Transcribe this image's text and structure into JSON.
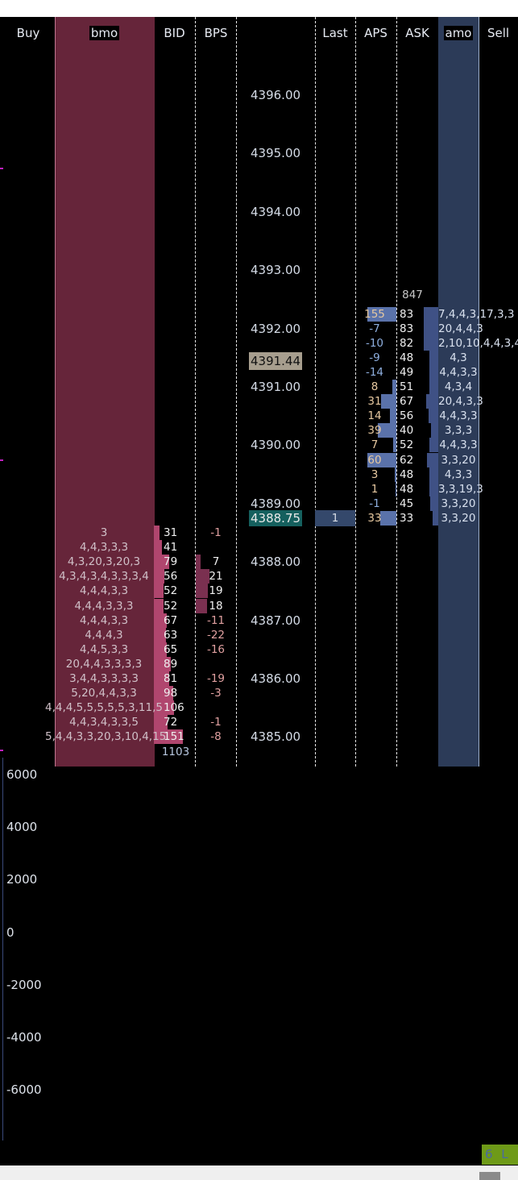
{
  "headers": {
    "buy": "Buy",
    "bmo": "bmo",
    "bid": "BID",
    "bps": "BPS",
    "last": "Last",
    "aps": "APS",
    "ask": "ASK",
    "amo": "amo",
    "sell": "Sell"
  },
  "colors": {
    "bmo_bg": "#66253a",
    "amo_bg": "#2c3b58",
    "bid_bar": "#b0466e",
    "bps_bar": "#7a3050",
    "ask_bar": "#3f5185",
    "aps_bar": "#5a72aa",
    "current_price_bg": "#15605e",
    "last_trade_bg": "#a79e8e",
    "last_qty_bg": "#34486b"
  },
  "price_labels": [
    "4396.00",
    "4395.00",
    "4394.00",
    "4393.00",
    "4392.00",
    "4391.00",
    "4390.00",
    "4389.00",
    "4388.00",
    "4387.00",
    "4386.00",
    "4385.00"
  ],
  "last_trade_price": "4391.44",
  "current_price": {
    "price": "4388.75",
    "last_qty": "1"
  },
  "ask_total": "847",
  "ask_rows": [
    {
      "price": "4392.25",
      "aps": "155",
      "ask": "83",
      "amo": "7,4,4,3,17,3,3"
    },
    {
      "price": "4392.00",
      "aps": "-7",
      "ask": "83",
      "amo": "20,4,4,3"
    },
    {
      "price": "4391.75",
      "aps": "-10",
      "ask": "82",
      "amo": "2,10,10,4,4,3,4"
    },
    {
      "price": "4391.50",
      "aps": "-9",
      "ask": "48",
      "amo": "4,3"
    },
    {
      "price": "4391.25",
      "aps": "-14",
      "ask": "49",
      "amo": "4,4,3,3"
    },
    {
      "price": "4391.00",
      "aps": "8",
      "ask": "51",
      "amo": "4,3,4"
    },
    {
      "price": "4390.75",
      "aps": "31",
      "ask": "67",
      "amo": "20,4,3,3"
    },
    {
      "price": "4390.50",
      "aps": "14",
      "ask": "56",
      "amo": "4,4,3,3"
    },
    {
      "price": "4390.25",
      "aps": "39",
      "ask": "40",
      "amo": "3,3,3"
    },
    {
      "price": "4390.00",
      "aps": "7",
      "ask": "52",
      "amo": "4,4,3,3"
    },
    {
      "price": "4389.75",
      "aps": "60",
      "ask": "62",
      "amo": "3,3,20"
    },
    {
      "price": "4389.50",
      "aps": "3",
      "ask": "48",
      "amo": "4,3,3"
    },
    {
      "price": "4389.25",
      "aps": "1",
      "ask": "48",
      "amo": "3,3,19,3"
    },
    {
      "price": "4389.00",
      "aps": "-1",
      "ask": "45",
      "amo": "3,3,20"
    },
    {
      "price": "4388.75",
      "aps": "33",
      "ask": "33",
      "amo": "3,3,20"
    }
  ],
  "bid_rows": [
    {
      "price": "4388.50",
      "bmo": "3",
      "bid": "31",
      "bps": "-1"
    },
    {
      "price": "4388.25",
      "bmo": "4,4,3,3,3",
      "bid": "41",
      "bps": ""
    },
    {
      "price": "4388.00",
      "bmo": "4,3,20,3,20,3",
      "bid": "79",
      "bps": "7"
    },
    {
      "price": "4387.75",
      "bmo": "4,3,4,3,4,3,3,3,4",
      "bid": "56",
      "bps": "21"
    },
    {
      "price": "4387.50",
      "bmo": "4,4,4,3,3",
      "bid": "52",
      "bps": "19"
    },
    {
      "price": "4387.25",
      "bmo": "4,4,4,3,3,3",
      "bid": "52",
      "bps": "18"
    },
    {
      "price": "4387.00",
      "bmo": "4,4,4,3,3",
      "bid": "67",
      "bps": "-11"
    },
    {
      "price": "4386.75",
      "bmo": "4,4,4,3",
      "bid": "63",
      "bps": "-22"
    },
    {
      "price": "4386.50",
      "bmo": "4,4,5,3,3",
      "bid": "65",
      "bps": "-16"
    },
    {
      "price": "4386.25",
      "bmo": "20,4,4,3,3,3,3",
      "bid": "89",
      "bps": ""
    },
    {
      "price": "4386.00",
      "bmo": "3,4,4,3,3,3,3",
      "bid": "81",
      "bps": "-19"
    },
    {
      "price": "4385.75",
      "bmo": "5,20,4,4,3,3",
      "bid": "98",
      "bps": "-3"
    },
    {
      "price": "4385.50",
      "bmo": "4,4,4,5,5,5,5,5,3,11,5",
      "bid": "106",
      "bps": ""
    },
    {
      "price": "4385.25",
      "bmo": "4,4,3,4,3,3,5",
      "bid": "72",
      "bps": "-1"
    },
    {
      "price": "4385.00",
      "bmo": "5,4,4,3,3,20,3,10,4,15",
      "bid": "151",
      "bps": "-8"
    }
  ],
  "bid_total": "1103",
  "chart_axis_labels": [
    "6000",
    "4000",
    "2000",
    "0",
    "-2000",
    "-4000",
    "-6000"
  ],
  "status_text": "6 L E"
}
